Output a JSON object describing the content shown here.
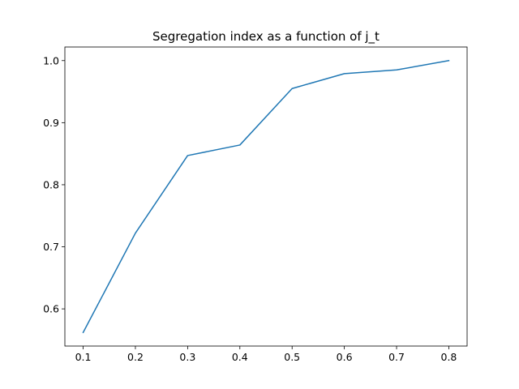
{
  "chart_data": {
    "type": "line",
    "title": "Segregation index as a function of j_t",
    "xlabel": "",
    "ylabel": "",
    "x": [
      0.1,
      0.2,
      0.3,
      0.4,
      0.5,
      0.6,
      0.7,
      0.8
    ],
    "series": [
      {
        "values": [
          0.562,
          0.722,
          0.847,
          0.864,
          0.955,
          0.979,
          0.985,
          1.0
        ]
      }
    ],
    "xlim": [
      0.065,
      0.835
    ],
    "ylim": [
      0.5401,
      1.0219
    ],
    "xticks": [
      0.1,
      0.2,
      0.3,
      0.4,
      0.5,
      0.6,
      0.7,
      0.8
    ],
    "xtick_labels": [
      "0.1",
      "0.2",
      "0.3",
      "0.4",
      "0.5",
      "0.6",
      "0.7",
      "0.8"
    ],
    "yticks": [
      0.6,
      0.7,
      0.8,
      0.9,
      1.0
    ],
    "ytick_labels": [
      "0.6",
      "0.7",
      "0.8",
      "0.9",
      "1.0"
    ],
    "grid": false,
    "legend": "none",
    "colors": {
      "line": "#1f77b4",
      "axes": "#000000"
    }
  }
}
